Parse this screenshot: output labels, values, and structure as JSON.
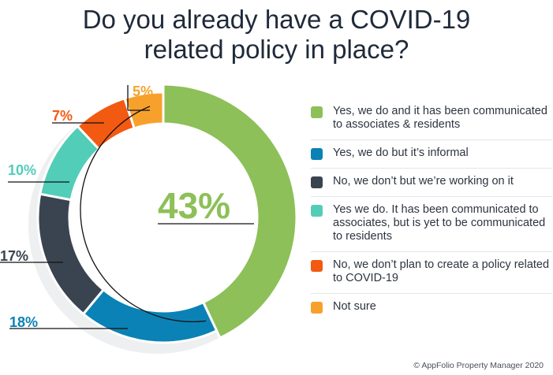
{
  "title_line1": "Do you already have a COVID-19",
  "title_line2": "related policy in place?",
  "credit": "© AppFolio Property Manager 2020",
  "chart_data": {
    "type": "pie",
    "categories": [
      "Yes, we do and it has been communicated to associates & residents",
      "Yes, we do but it’s informal",
      "No, we don’t but we’re working on it",
      "Yes we do. It has been communicated to associates, but is yet to be communicated to residents",
      "No, we don’t plan to create a policy related to COVID-19",
      "Not sure"
    ],
    "values": [
      43,
      18,
      17,
      10,
      7,
      5
    ],
    "value_labels": [
      "43%",
      "18%",
      "17%",
      "10%",
      "7%",
      "5%"
    ],
    "colors": [
      "#8dc058",
      "#0b82b5",
      "#3a4450",
      "#52cdb8",
      "#f25a12",
      "#f7a12c"
    ],
    "legend": "right"
  }
}
